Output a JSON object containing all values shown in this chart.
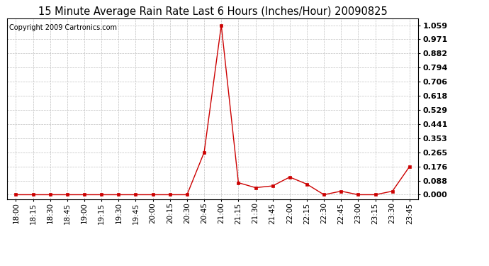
{
  "title": "15 Minute Average Rain Rate Last 6 Hours (Inches/Hour) 20090825",
  "copyright": "Copyright 2009 Cartronics.com",
  "x_labels": [
    "18:00",
    "18:15",
    "18:30",
    "18:45",
    "19:00",
    "19:15",
    "19:30",
    "19:45",
    "20:00",
    "20:15",
    "20:30",
    "20:45",
    "21:00",
    "21:15",
    "21:30",
    "21:45",
    "22:00",
    "22:15",
    "22:30",
    "22:45",
    "23:00",
    "23:15",
    "23:30",
    "23:45"
  ],
  "y_values": [
    0.0,
    0.0,
    0.0,
    0.0,
    0.0,
    0.0,
    0.0,
    0.0,
    0.0,
    0.0,
    0.0,
    0.265,
    1.059,
    0.075,
    0.044,
    0.055,
    0.11,
    0.066,
    0.0,
    0.022,
    0.0,
    0.0,
    0.022,
    0.176
  ],
  "line_color": "#cc0000",
  "marker_color": "#cc0000",
  "background_color": "#ffffff",
  "grid_color": "#c0c0c0",
  "title_fontsize": 10.5,
  "yticks": [
    0.0,
    0.088,
    0.176,
    0.265,
    0.353,
    0.441,
    0.529,
    0.618,
    0.706,
    0.794,
    0.882,
    0.971,
    1.059
  ],
  "ylim": [
    -0.03,
    1.1
  ],
  "copyright_fontsize": 7,
  "tick_fontsize": 7.5,
  "ytick_fontsize": 8
}
